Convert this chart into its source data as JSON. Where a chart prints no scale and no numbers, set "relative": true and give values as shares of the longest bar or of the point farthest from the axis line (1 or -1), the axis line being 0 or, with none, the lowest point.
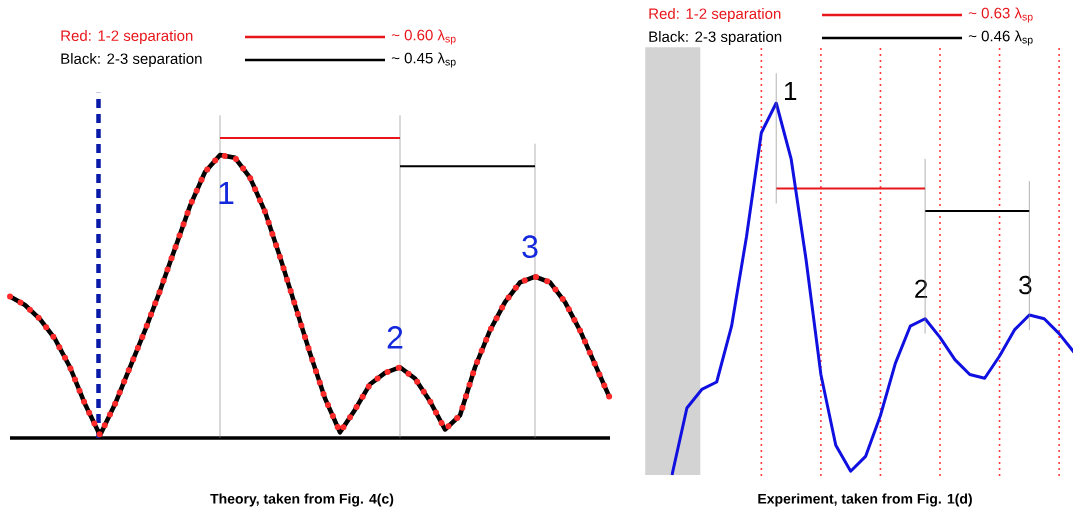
{
  "chart_data": [
    {
      "type": "line",
      "title": "Theory, taken from Fig. 4(c)",
      "relative": true,
      "grid": "x",
      "line_style": "solid",
      "categories": [
        null,
        null,
        null,
        null,
        null,
        null,
        null,
        null,
        null,
        null,
        null,
        null,
        null,
        null,
        null,
        null,
        null,
        null,
        null,
        null,
        null,
        null,
        null,
        null,
        null,
        null,
        null,
        null,
        null,
        null,
        null,
        null,
        null,
        null,
        null,
        null,
        null,
        null,
        null,
        null,
        null
      ],
      "series": [
        {
          "color": "#000000",
          "values": [
            0.5,
            0.47,
            0.42,
            0.35,
            0.25,
            0.12,
            0.01,
            0.12,
            0.25,
            0.38,
            0.52,
            0.67,
            0.82,
            0.94,
            1.0,
            0.99,
            0.92,
            0.8,
            0.64,
            0.47,
            0.3,
            0.14,
            0.02,
            0.1,
            0.19,
            0.23,
            0.25,
            0.21,
            0.13,
            0.03,
            0.08,
            0.25,
            0.38,
            0.48,
            0.55,
            0.57,
            0.55,
            0.48,
            0.38,
            0.26,
            0.14
          ]
        },
        {
          "color": "#ff2a2a",
          "line_style": "dotted",
          "values": [
            0.5,
            0.47,
            0.42,
            0.35,
            0.25,
            0.12,
            0.01,
            0.12,
            0.25,
            0.38,
            0.52,
            0.67,
            0.82,
            0.94,
            1.0,
            0.99,
            0.92,
            0.8,
            0.64,
            0.47,
            0.3,
            0.14,
            0.02,
            0.1,
            0.19,
            0.23,
            0.25,
            0.21,
            0.13,
            0.03,
            0.08,
            0.25,
            0.38,
            0.48,
            0.55,
            0.57,
            0.55,
            0.48,
            0.38,
            0.26,
            0.14
          ]
        }
      ],
      "ref_lines": [
        {
          "axis": "y",
          "value": 1.06,
          "color": "#e8161b",
          "line_style": "solid"
        },
        {
          "axis": "y",
          "value": 0.96,
          "color": "#000000",
          "line_style": "solid"
        }
      ],
      "annotations": [
        "Red: 1-2 separation",
        "~ 0.60 λ$_{sp}$",
        "Black: 2-3 separation",
        "~ 0.45 λ$_{sp}$",
        "1",
        "2",
        "3"
      ]
    },
    {
      "type": "line",
      "title": "Experiment, taken from Fig. 1(d)",
      "relative": true,
      "grid": "x",
      "line_style": "solid",
      "categories": [
        null,
        null,
        null,
        null,
        null,
        null,
        null,
        null,
        null,
        null,
        null,
        null,
        null,
        null,
        null,
        null,
        null,
        null,
        null,
        null,
        null,
        null,
        null,
        null,
        null,
        null,
        null,
        null
      ],
      "series": [
        {
          "color": "#1010e0",
          "values": [
            0,
            0.18,
            0.23,
            0.25,
            0.4,
            0.64,
            0.92,
            1.0,
            0.85,
            0.58,
            0.27,
            0.08,
            0.01,
            0.05,
            0.16,
            0.3,
            0.4,
            0.42,
            0.37,
            0.31,
            0.27,
            0.26,
            0.32,
            0.39,
            0.43,
            0.42,
            0.38,
            0.33
          ]
        }
      ],
      "ref_lines": [
        {
          "axis": "y",
          "value": 0.77,
          "color": "#e8161b",
          "line_style": "solid"
        },
        {
          "axis": "y",
          "value": 0.71,
          "color": "#000000",
          "line_style": "solid"
        }
      ],
      "annotations": [
        "Red: 1-2 separation",
        "~ 0.63 λ$_{sp}$",
        "Black: 2-3 sparation",
        "~ 0.46 λ$_{sp}$",
        "1",
        "2",
        "3"
      ]
    }
  ]
}
